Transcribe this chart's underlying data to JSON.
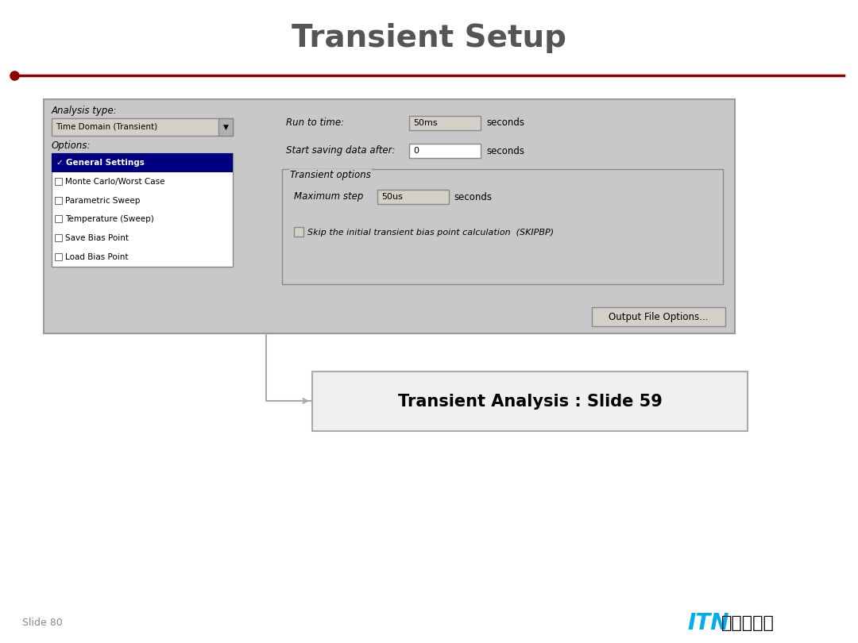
{
  "title": "Transient Setup",
  "title_color": "#555555",
  "title_fontsize": 28,
  "line_color": "#8b0000",
  "line_dot_color": "#8b0000",
  "bg_color": "#ffffff",
  "slide_num": "Slide 80",
  "slide_num_color": "#888888",
  "slide_num_fontsize": 9,
  "itn_text": "ITN",
  "itn_color": "#00aeef",
  "itn_fontsize": 20,
  "company_text": "㎜아이티앤",
  "company_fontsize": 16,
  "dialog_bg": "#c8c8c8",
  "dialog_border": "#999999",
  "analysis_label": "Analysis type:",
  "dropdown_text": "Time Domain (Transient)",
  "options_label": "Options:",
  "options_list": [
    "General Settings",
    "Monte Carlo/Worst Case",
    "Parametric Sweep",
    "Temperature (Sweep)",
    "Save Bias Point",
    "Load Bias Point"
  ],
  "run_to_time_label": "Run to time:",
  "run_to_time_value": "50ms",
  "run_to_time_unit": "seconds",
  "start_saving_label": "Start saving data after:",
  "start_saving_value": "0",
  "start_saving_unit": "seconds",
  "transient_options_label": "Transient options",
  "max_step_label": "Maximum step",
  "max_step_value": "50us",
  "max_step_unit": "seconds",
  "skip_label": "Skip the initial transient bias point calculation  (SKIPBP)",
  "output_btn": "Output File Options...",
  "callout_text": "Transient Analysis : Slide 59",
  "callout_bg": "#f0f0f0",
  "callout_border": "#aaaaaa"
}
